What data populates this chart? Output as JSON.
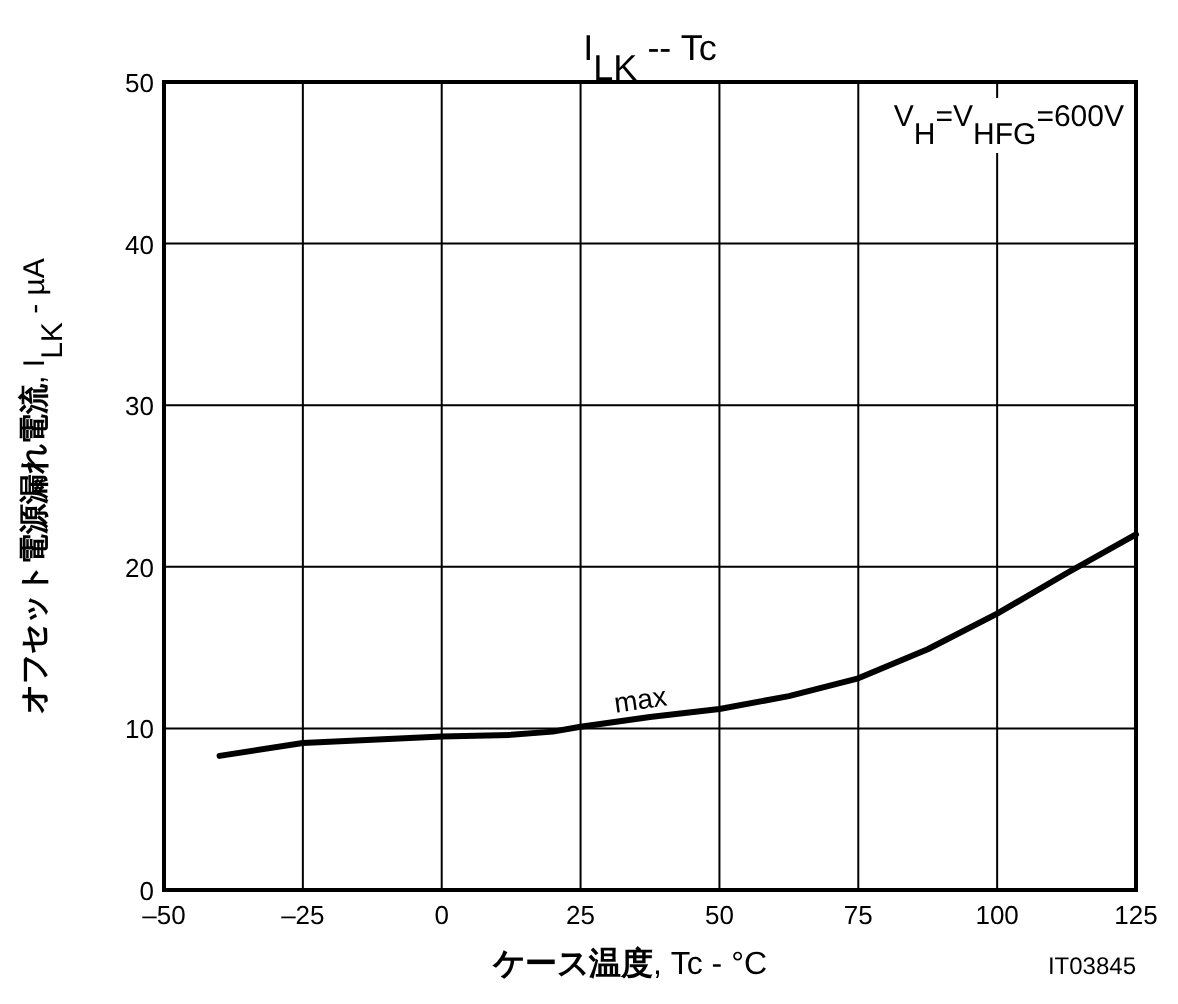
{
  "chart_data": {
    "type": "line",
    "title": "I$_{LK}$ -- Tc",
    "xlabel": "ケース温度, Tc - °C",
    "ylabel": "オフセット電源漏れ電流, I$_{LK}$ - µA",
    "x": [
      -40,
      -25,
      -12.5,
      0,
      12.5,
      20,
      25,
      37.5,
      50,
      62.5,
      75,
      87.5,
      100,
      112.5,
      125
    ],
    "values": [
      8.3,
      9.1,
      9.3,
      9.5,
      9.6,
      9.8,
      10.1,
      10.7,
      11.2,
      12.0,
      13.1,
      14.9,
      17.1,
      19.6,
      22.0
    ],
    "color": "#000000",
    "xlim": [
      -50,
      125
    ],
    "xticks": [
      {
        "value": -50,
        "label": "–50"
      },
      {
        "value": -25,
        "label": "–25"
      },
      0,
      25,
      50,
      75,
      100,
      125
    ],
    "ylim": [
      0,
      50
    ],
    "yticks": [
      0,
      10,
      20,
      30,
      40,
      50
    ],
    "grid": true,
    "marker": "none",
    "line_style": "solid",
    "annotations": [
      {
        "text": "max",
        "x": 36,
        "y": 11.2
      },
      "V$_{H}$=V$_{HFG}$=600V",
      "IT03845"
    ]
  }
}
